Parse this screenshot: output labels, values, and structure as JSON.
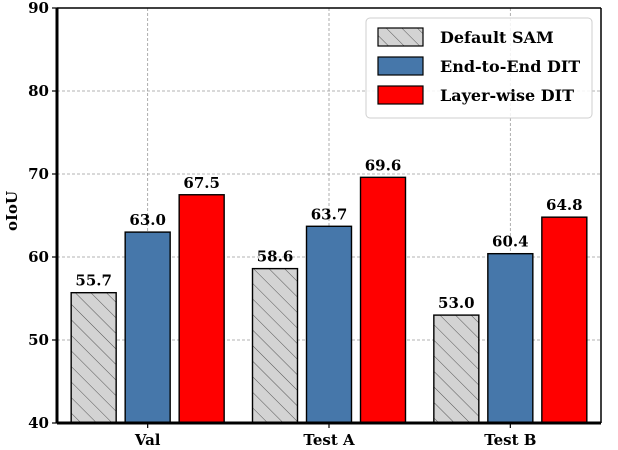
{
  "chart_data": {
    "type": "bar",
    "categories": [
      "Val",
      "Test A",
      "Test B"
    ],
    "series": [
      {
        "name": "Default SAM",
        "values": [
          55.7,
          58.6,
          53.0
        ],
        "color": "#d3d3d3",
        "hatch": true
      },
      {
        "name": "End-to-End DIT",
        "values": [
          63.0,
          63.7,
          60.4
        ],
        "color": "#4677aa",
        "hatch": false
      },
      {
        "name": "Layer-wise DIT",
        "values": [
          67.5,
          69.6,
          64.8
        ],
        "color": "#ff0000",
        "hatch": false
      }
    ],
    "data_labels": [
      [
        "55.7",
        "58.6",
        "53.0"
      ],
      [
        "63.0",
        "63.7",
        "60.4"
      ],
      [
        "67.5",
        "69.6",
        "64.8"
      ]
    ],
    "yticks": [
      "40",
      "50",
      "60",
      "70",
      "80",
      "90"
    ],
    "title": "",
    "xlabel": "",
    "ylabel": "oIoU",
    "ylim": [
      40,
      90
    ],
    "grid": true,
    "legend": "top-right"
  }
}
